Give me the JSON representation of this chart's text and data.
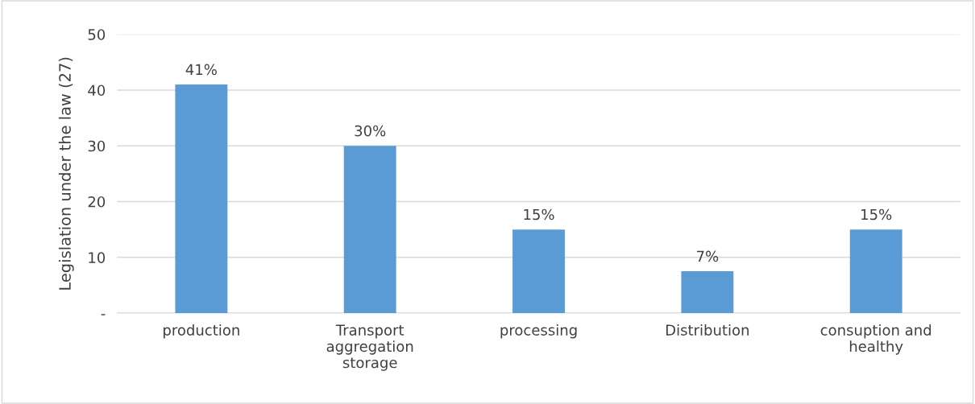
{
  "chart_data": {
    "type": "bar",
    "ylabel": "Legislation under the law (27)",
    "categories": [
      "production",
      "Transport\naggregation\nstorage",
      "processing",
      "Distribution",
      "consuption and\nhealthy"
    ],
    "values": [
      41,
      30,
      15,
      7.5,
      15
    ],
    "value_labels": [
      "41%",
      "30%",
      "15%",
      "7%",
      "15%"
    ],
    "color": "#5b9bd5",
    "ylim": [
      0,
      50
    ],
    "yticks": [
      {
        "value": 0,
        "label": "-"
      },
      10,
      20,
      30,
      40,
      50
    ],
    "grid": "y"
  }
}
